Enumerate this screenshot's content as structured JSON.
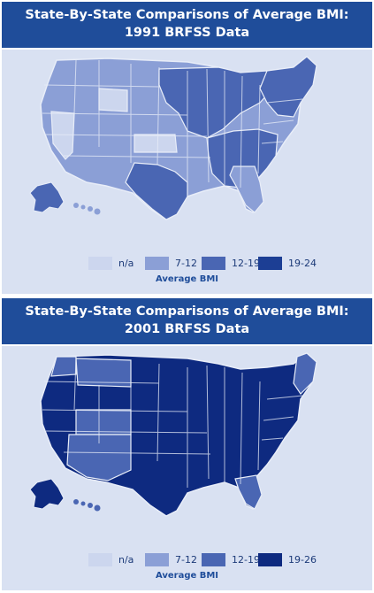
{
  "maps": [
    {
      "title_line1": "State-By-State Comparisons of Average BMI:",
      "title_line2": "1991 BRFSS Data",
      "legend": {
        "title": "Average BMI",
        "items": [
          {
            "label": "n/a",
            "color": "#ccd6ee"
          },
          {
            "label": "7-12",
            "color": "#8b9fd6"
          },
          {
            "label": "12-19",
            "color": "#4a66b3"
          },
          {
            "label": "19-24",
            "color": "#1c3e94"
          }
        ]
      }
    },
    {
      "title_line1": "State-By-State Comparisons of Average BMI:",
      "title_line2": "2001 BRFSS Data",
      "legend": {
        "title": "Average BMI",
        "items": [
          {
            "label": "n/a",
            "color": "#ccd6ee"
          },
          {
            "label": "7-12",
            "color": "#8b9fd6"
          },
          {
            "label": "12-19",
            "color": "#4a66b3"
          },
          {
            "label": "19-26",
            "color": "#0e2a80"
          }
        ]
      }
    }
  ]
}
